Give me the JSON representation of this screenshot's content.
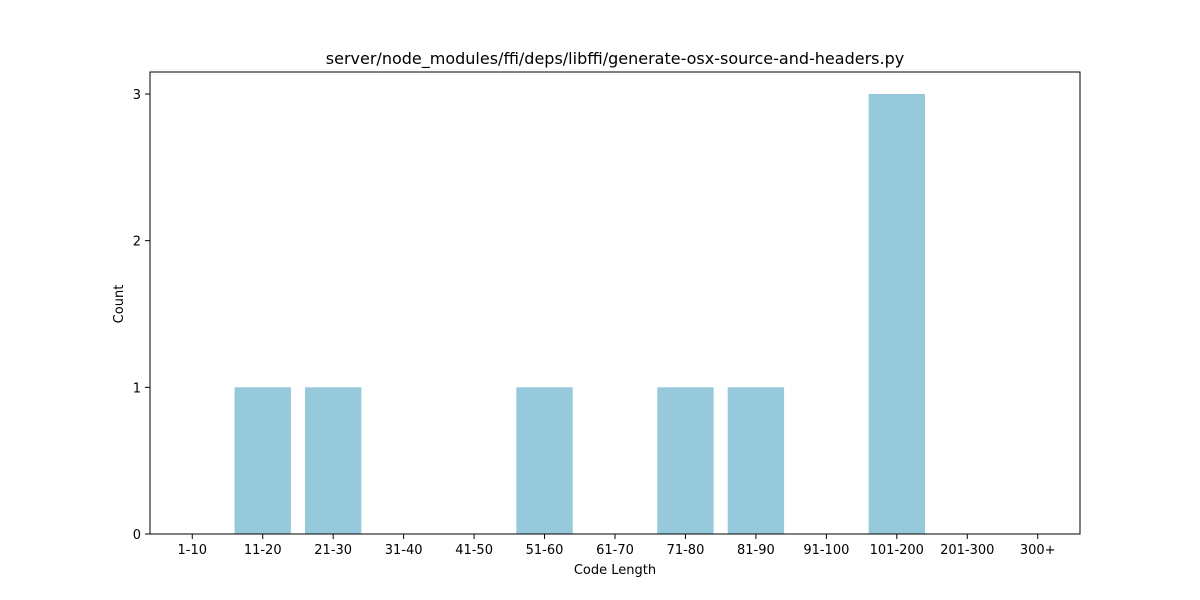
{
  "chart_data": {
    "type": "bar",
    "title": "server/node_modules/ffi/deps/libffi/generate-osx-source-and-headers.py",
    "xlabel": "Code Length",
    "ylabel": "Count",
    "categories": [
      "1-10",
      "11-20",
      "21-30",
      "31-40",
      "41-50",
      "51-60",
      "61-70",
      "71-80",
      "81-90",
      "91-100",
      "101-200",
      "201-300",
      "300+"
    ],
    "values": [
      0,
      1,
      1,
      0,
      0,
      1,
      0,
      1,
      1,
      0,
      3,
      0,
      0
    ],
    "ylim": [
      0,
      3.15
    ],
    "yticks": [
      0,
      1,
      2,
      3
    ],
    "bar_color": "#96c9dc",
    "grid": false,
    "legend": "none"
  }
}
